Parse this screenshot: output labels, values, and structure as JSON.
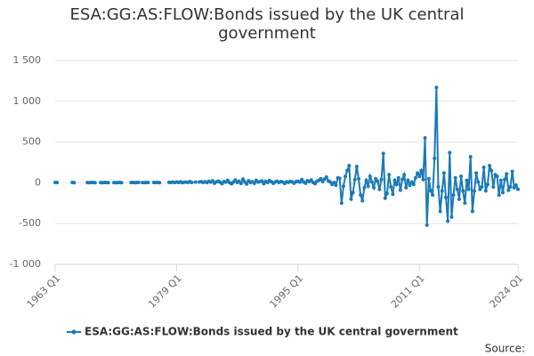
{
  "chart_data": {
    "type": "line",
    "title": "ESA:GG:AS:FLOW:Bonds issued by the UK central government",
    "source": "Source:",
    "categories": [
      "1963 Q1",
      null,
      null,
      null,
      null,
      null,
      null,
      null,
      null,
      null,
      null,
      null,
      null,
      null,
      null,
      null,
      null,
      null,
      null,
      null,
      null,
      null,
      null,
      null,
      null,
      null,
      null,
      null,
      null,
      null,
      null,
      null,
      null,
      null,
      null,
      null,
      null,
      null,
      null,
      null,
      null,
      null,
      null,
      null,
      null,
      null,
      null,
      null,
      null,
      null,
      null,
      null,
      null,
      null,
      null,
      null,
      null,
      null,
      null,
      null,
      null,
      null,
      null,
      null,
      "1979 Q1",
      null,
      null,
      null,
      null,
      null,
      null,
      null,
      null,
      null,
      null,
      null,
      null,
      null,
      null,
      null,
      null,
      null,
      null,
      null,
      null,
      null,
      null,
      null,
      null,
      null,
      null,
      null,
      null,
      null,
      null,
      null,
      null,
      null,
      null,
      null,
      null,
      null,
      null,
      null,
      null,
      null,
      null,
      null,
      null,
      null,
      null,
      null,
      null,
      null,
      null,
      null,
      null,
      null,
      null,
      null,
      null,
      null,
      null,
      null,
      null,
      null,
      null,
      null,
      "1995 Q1",
      null,
      null,
      null,
      null,
      null,
      null,
      null,
      null,
      null,
      null,
      null,
      null,
      null,
      null,
      null,
      null,
      null,
      null,
      null,
      null,
      null,
      null,
      null,
      null,
      null,
      null,
      null,
      null,
      null,
      null,
      null,
      null,
      null,
      null,
      null,
      null,
      null,
      null,
      null,
      null,
      null,
      null,
      null,
      null,
      null,
      null,
      null,
      null,
      null,
      null,
      null,
      null,
      null,
      null,
      null,
      null,
      null,
      null,
      null,
      null,
      null,
      null,
      null,
      "2011 Q1",
      null,
      null,
      null,
      null,
      null,
      null,
      null,
      null,
      null,
      null,
      null,
      null,
      null,
      null,
      null,
      null,
      null,
      null,
      null,
      null,
      null,
      null,
      null,
      null,
      null,
      null,
      null,
      null,
      null,
      null,
      null,
      null,
      null,
      null,
      null,
      null,
      null,
      null,
      null,
      null,
      null,
      null,
      null,
      null,
      null,
      null,
      null,
      null,
      null,
      null,
      null,
      "2024 Q1"
    ],
    "series": [
      {
        "name": "ESA:GG:AS:FLOW:Bonds issued by the UK central government",
        "color": "#1a7ab8",
        "values": [
          5,
          3,
          null,
          null,
          null,
          null,
          null,
          null,
          null,
          4,
          2,
          null,
          null,
          null,
          null,
          null,
          null,
          3,
          2,
          4,
          3,
          2,
          null,
          null,
          3,
          2,
          4,
          3,
          2,
          null,
          null,
          3,
          2,
          3,
          4,
          2,
          null,
          null,
          null,
          null,
          3,
          4,
          2,
          3,
          4,
          null,
          3,
          2,
          4,
          3,
          null,
          null,
          4,
          3,
          5,
          2,
          null,
          null,
          null,
          null,
          6,
          4,
          8,
          3,
          10,
          5,
          12,
          2,
          7,
          9,
          4,
          15,
          3,
          null,
          8,
          null,
          10,
          14,
          5,
          12,
          3,
          18,
          8,
          25,
          -5,
          12,
          20,
          6,
          -10,
          15,
          8,
          30,
          2,
          -12,
          10,
          35,
          5,
          20,
          -8,
          45,
          10,
          -15,
          25,
          5,
          12,
          -5,
          30,
          8,
          15,
          22,
          -10,
          18,
          5,
          28,
          12,
          -6,
          10,
          20,
          4,
          15,
          8,
          -8,
          12,
          6,
          18,
          10,
          -5,
          14,
          20,
          8,
          40,
          10,
          -5,
          25,
          15,
          35,
          5,
          -10,
          20,
          30,
          50,
          15,
          45,
          70,
          25,
          10,
          -20,
          5,
          -30,
          60,
          55,
          -250,
          -40,
          80,
          150,
          210,
          -200,
          -120,
          40,
          200,
          50,
          -150,
          -220,
          -60,
          30,
          -40,
          80,
          10,
          -60,
          50,
          20,
          -80,
          40,
          360,
          -190,
          -130,
          100,
          -50,
          -140,
          30,
          -20,
          60,
          -90,
          40,
          100,
          -60,
          30,
          -30,
          10,
          -20,
          60,
          120,
          80,
          150,
          40,
          550,
          -520,
          50,
          -100,
          -150,
          300,
          1170,
          -50,
          -350,
          -100,
          120,
          -180,
          -470,
          370,
          -420,
          -150,
          60,
          -80,
          -200,
          80,
          -100,
          -250,
          30,
          -80,
          320,
          -350,
          -100,
          120,
          10,
          -80,
          -50,
          190,
          -100,
          -20,
          210,
          150,
          -50,
          100,
          80,
          -150,
          30,
          -120,
          40,
          110,
          -90,
          -50,
          140,
          -60,
          -30,
          -80
        ]
      }
    ],
    "ylim": [
      -1000,
      1500
    ],
    "yticks": [
      {
        "value": -1000,
        "label": "-1 000"
      },
      -500,
      0,
      500,
      {
        "value": 1000,
        "label": "1 000"
      },
      {
        "value": 1500,
        "label": "1 500"
      }
    ],
    "grid": true
  }
}
